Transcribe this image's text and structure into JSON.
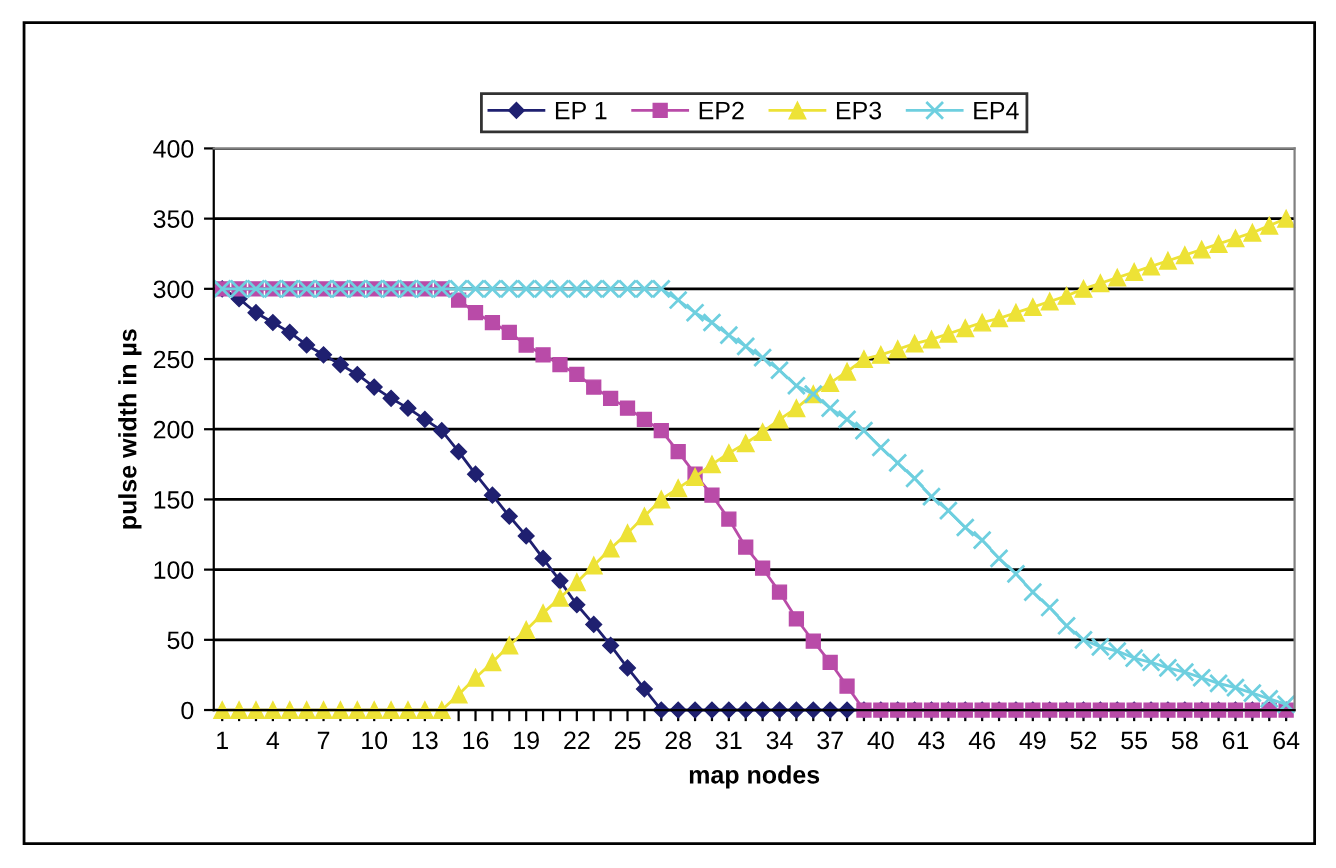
{
  "chart_data": {
    "type": "line",
    "xlabel": "map nodes",
    "ylabel": "pulse width in µs",
    "categories": [
      "1",
      null,
      null,
      "4",
      null,
      null,
      "7",
      null,
      null,
      "10",
      null,
      null,
      "13",
      null,
      null,
      "16",
      null,
      null,
      "19",
      null,
      null,
      "22",
      null,
      null,
      "25",
      null,
      null,
      "28",
      null,
      null,
      "31",
      null,
      null,
      "34",
      null,
      null,
      "37",
      null,
      null,
      "40",
      null,
      null,
      "43",
      null,
      null,
      "46",
      null,
      null,
      "49",
      null,
      null,
      "52",
      null,
      null,
      "55",
      null,
      null,
      "58",
      null,
      null,
      "61",
      null,
      null,
      "64"
    ],
    "ylim": [
      0,
      400
    ],
    "yticks": [
      0,
      50,
      100,
      150,
      200,
      250,
      300,
      350,
      400
    ],
    "grid": "y",
    "legend": "top",
    "series": [
      {
        "name": "EP 1",
        "color": "#1f2070",
        "marker": "diamond",
        "values": [
          300,
          293,
          283,
          276,
          269,
          260,
          253,
          246,
          239,
          230,
          222,
          215,
          207,
          199,
          184,
          168,
          153,
          138,
          124,
          108,
          92,
          75,
          61,
          46,
          30,
          15,
          0,
          0,
          0,
          0,
          0,
          0,
          0,
          0,
          0,
          0,
          0,
          0,
          0,
          0,
          0,
          0,
          0,
          0,
          0,
          0,
          0,
          0,
          0,
          0,
          0,
          0,
          0,
          0,
          0,
          0,
          0,
          0,
          0,
          0,
          0,
          0,
          0,
          0
        ]
      },
      {
        "name": "EP2",
        "color": "#b94ba8",
        "marker": "square",
        "values": [
          300,
          300,
          300,
          300,
          300,
          300,
          300,
          300,
          300,
          300,
          300,
          300,
          300,
          300,
          292,
          283,
          276,
          269,
          260,
          253,
          246,
          239,
          230,
          222,
          215,
          207,
          199,
          184,
          168,
          153,
          136,
          116,
          101,
          84,
          65,
          49,
          34,
          17,
          0,
          0,
          0,
          0,
          0,
          0,
          0,
          0,
          0,
          0,
          0,
          0,
          0,
          0,
          0,
          0,
          0,
          0,
          0,
          0,
          0,
          0,
          0,
          0,
          0,
          0
        ]
      },
      {
        "name": "EP3",
        "color": "#ede236",
        "marker": "triangle",
        "values": [
          0,
          0,
          0,
          0,
          0,
          0,
          0,
          0,
          0,
          0,
          0,
          0,
          0,
          0,
          11,
          23,
          34,
          46,
          57,
          69,
          80,
          91,
          103,
          115,
          126,
          138,
          150,
          158,
          166,
          175,
          183,
          190,
          198,
          207,
          215,
          225,
          233,
          241,
          250,
          253,
          257,
          261,
          264,
          268,
          272,
          276,
          279,
          283,
          287,
          291,
          295,
          300,
          304,
          308,
          312,
          316,
          320,
          324,
          328,
          332,
          336,
          340,
          345,
          350
        ]
      },
      {
        "name": "EP4",
        "color": "#6ecfdf",
        "marker": "cross",
        "values": [
          300,
          300,
          300,
          300,
          300,
          300,
          300,
          300,
          300,
          300,
          300,
          300,
          300,
          300,
          300,
          300,
          300,
          300,
          300,
          300,
          300,
          300,
          300,
          300,
          300,
          300,
          300,
          292,
          283,
          276,
          267,
          259,
          251,
          242,
          231,
          225,
          215,
          207,
          199,
          187,
          176,
          165,
          152,
          142,
          130,
          121,
          108,
          97,
          84,
          73,
          60,
          50,
          45,
          42,
          37,
          34,
          30,
          27,
          23,
          19,
          16,
          12,
          8,
          4
        ]
      }
    ]
  }
}
